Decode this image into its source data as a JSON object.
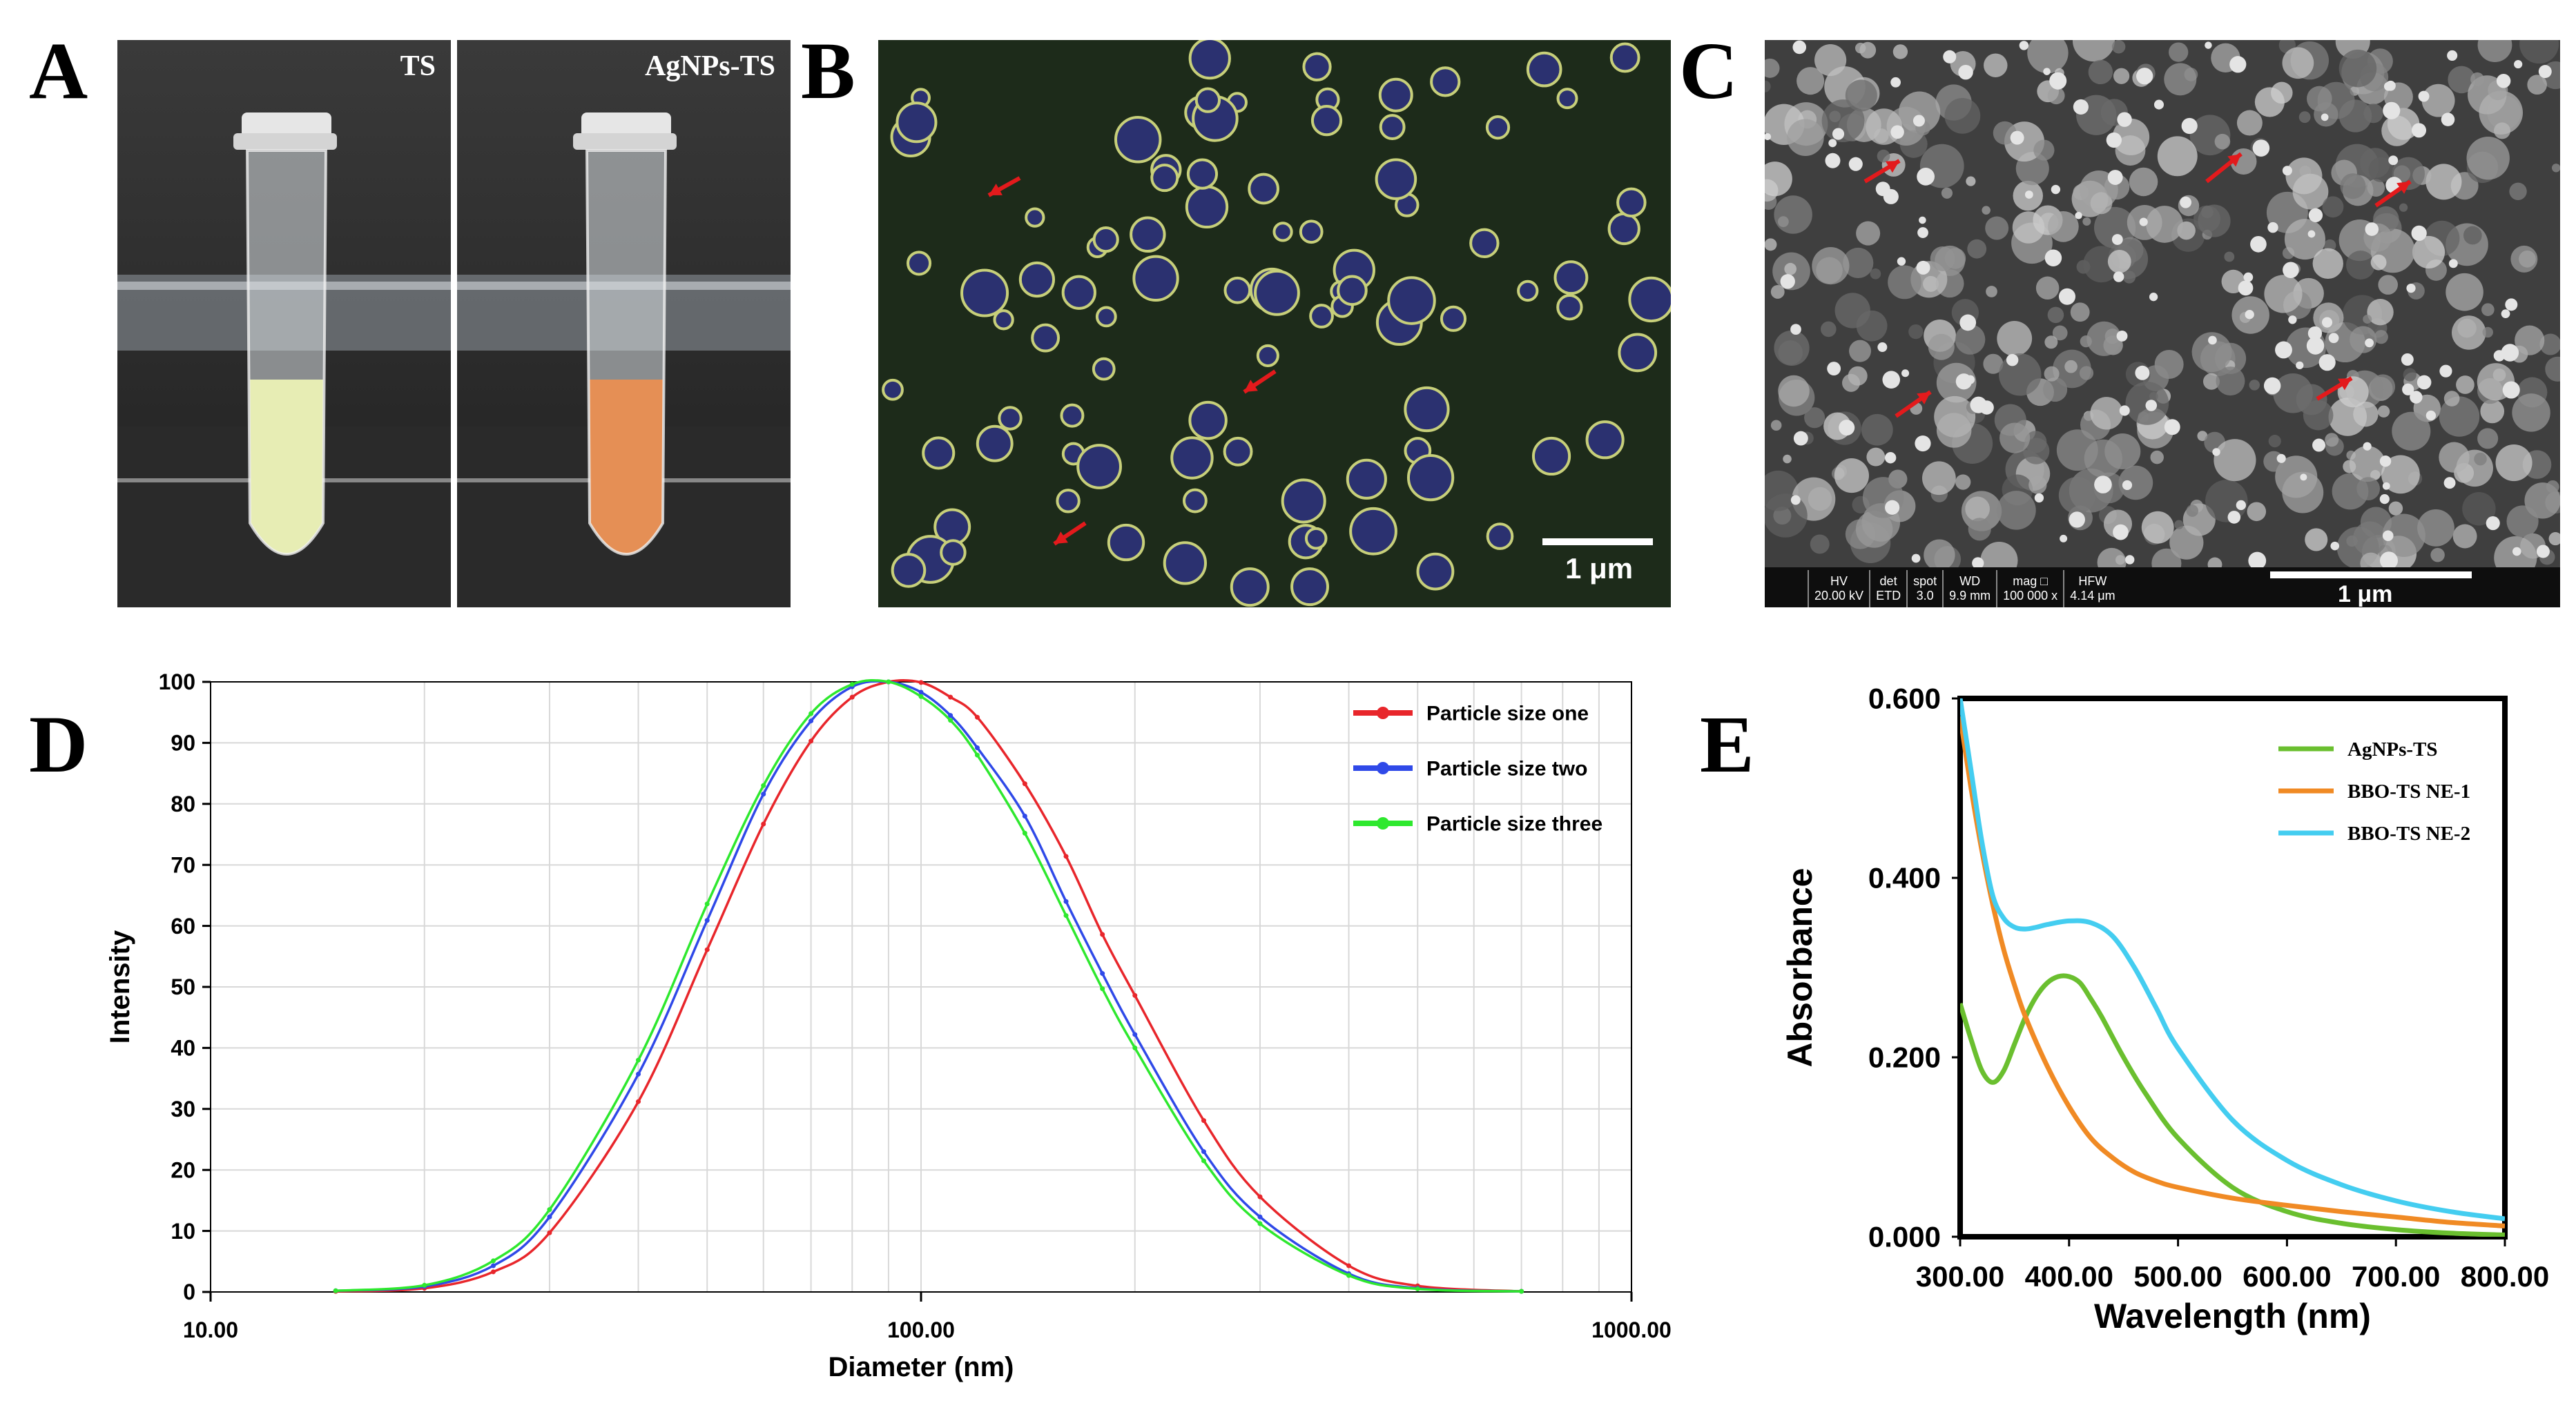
{
  "panels": {
    "a": {
      "letter": "A",
      "label_left": "TS",
      "label_right": "AgNPs-TS"
    },
    "b": {
      "letter": "B",
      "scale": "1 μm"
    },
    "c": {
      "letter": "C",
      "scale": "1 μm",
      "sem_info": [
        {
          "k": "HV",
          "v": "20.00 kV"
        },
        {
          "k": "det",
          "v": "ETD"
        },
        {
          "k": "spot",
          "v": "3.0"
        },
        {
          "k": "WD",
          "v": "9.9 mm"
        },
        {
          "k": "mag □",
          "v": "100 000 x"
        },
        {
          "k": "HFW",
          "v": "4.14 μm"
        }
      ]
    },
    "d": {
      "letter": "D"
    },
    "e": {
      "letter": "E"
    }
  },
  "colors": {
    "ts_liquid": "#e7edb4",
    "agnps_liquid": "#e58f55",
    "micro_bg": "#1d2b1a",
    "particle_core": "#2b3170",
    "particle_ring": "#c7cf7a",
    "arrow": "#e31a1c"
  },
  "chart_data": [
    {
      "type": "line",
      "x_scale": "log",
      "xlabel": "Diameter (nm)",
      "ylabel": "Intensity",
      "xlim": [
        10,
        1000
      ],
      "ylim": [
        0,
        100
      ],
      "x_ticks": [
        "10.00",
        "100.00",
        "1000.00"
      ],
      "y_ticks": [
        "0",
        "10",
        "20",
        "30",
        "40",
        "50",
        "60",
        "70",
        "80",
        "90",
        "100"
      ],
      "grid": true,
      "legend_position": "top-right",
      "x": [
        15,
        20,
        25,
        30,
        40,
        50,
        60,
        70,
        80,
        90,
        100,
        110,
        120,
        140,
        160,
        180,
        200,
        250,
        300,
        400,
        500,
        700
      ],
      "series": [
        {
          "name": "Particle size one",
          "color": "#e8262b",
          "values": [
            0.1,
            0.6,
            3.3,
            9.7,
            31.2,
            56.1,
            76.7,
            90.3,
            97.5,
            100,
            99.9,
            97.5,
            94.2,
            83.3,
            71.4,
            58.6,
            48.6,
            28.1,
            15.6,
            4.3,
            1.0,
            0.1
          ]
        },
        {
          "name": "Particle size two",
          "color": "#2f49e8",
          "values": [
            0.2,
            0.9,
            4.3,
            12.3,
            35.7,
            60.9,
            81.6,
            93.6,
            99.2,
            100,
            98.3,
            94.5,
            89.2,
            78.0,
            64.0,
            52.2,
            42.2,
            23.0,
            12.3,
            3.0,
            0.6,
            0.1
          ]
        },
        {
          "name": "Particle size three",
          "color": "#2ee82e",
          "values": [
            0.2,
            1.1,
            5.1,
            13.5,
            38.0,
            63.6,
            83.0,
            94.8,
            99.6,
            100,
            97.6,
            93.7,
            88.0,
            75.2,
            61.7,
            49.7,
            40.0,
            21.5,
            11.2,
            2.7,
            0.5,
            0.1
          ]
        }
      ]
    },
    {
      "type": "line",
      "xlabel": "Wavelength (nm)",
      "ylabel": "Absorbance",
      "xlim": [
        300,
        800
      ],
      "ylim": [
        0,
        0.6
      ],
      "x_ticks": [
        "300.00",
        "400.00",
        "500.00",
        "600.00",
        "700.00",
        "800.00"
      ],
      "y_ticks": [
        "0.000",
        "0.200",
        "0.400",
        "0.600"
      ],
      "grid": false,
      "legend_position": "top-right",
      "series": [
        {
          "name": "AgNPs-TS",
          "color": "#6abf2f",
          "x": [
            300,
            310,
            320,
            330,
            340,
            350,
            360,
            370,
            380,
            390,
            400,
            410,
            420,
            430,
            450,
            470,
            500,
            550,
            600,
            650,
            700,
            750,
            800
          ],
          "values": [
            0.26,
            0.22,
            0.185,
            0.172,
            0.185,
            0.215,
            0.245,
            0.268,
            0.283,
            0.29,
            0.29,
            0.283,
            0.265,
            0.245,
            0.2,
            0.16,
            0.11,
            0.055,
            0.028,
            0.015,
            0.008,
            0.004,
            0.002
          ]
        },
        {
          "name": "BBO-TS NE-1",
          "color": "#f08a24",
          "x": [
            300,
            310,
            320,
            330,
            340,
            350,
            360,
            380,
            400,
            420,
            440,
            460,
            480,
            500,
            550,
            600,
            650,
            700,
            750,
            800
          ],
          "values": [
            0.58,
            0.5,
            0.43,
            0.37,
            0.32,
            0.28,
            0.245,
            0.19,
            0.145,
            0.11,
            0.088,
            0.072,
            0.062,
            0.055,
            0.043,
            0.035,
            0.028,
            0.022,
            0.016,
            0.012
          ]
        },
        {
          "name": "BBO-TS NE-2",
          "color": "#44cdf0",
          "x": [
            300,
            310,
            320,
            330,
            340,
            350,
            360,
            370,
            380,
            400,
            420,
            440,
            460,
            480,
            500,
            550,
            600,
            650,
            700,
            750,
            800
          ],
          "values": [
            0.6,
            0.52,
            0.44,
            0.38,
            0.355,
            0.345,
            0.343,
            0.345,
            0.348,
            0.352,
            0.35,
            0.335,
            0.3,
            0.255,
            0.21,
            0.13,
            0.085,
            0.058,
            0.04,
            0.028,
            0.02
          ]
        }
      ]
    }
  ]
}
